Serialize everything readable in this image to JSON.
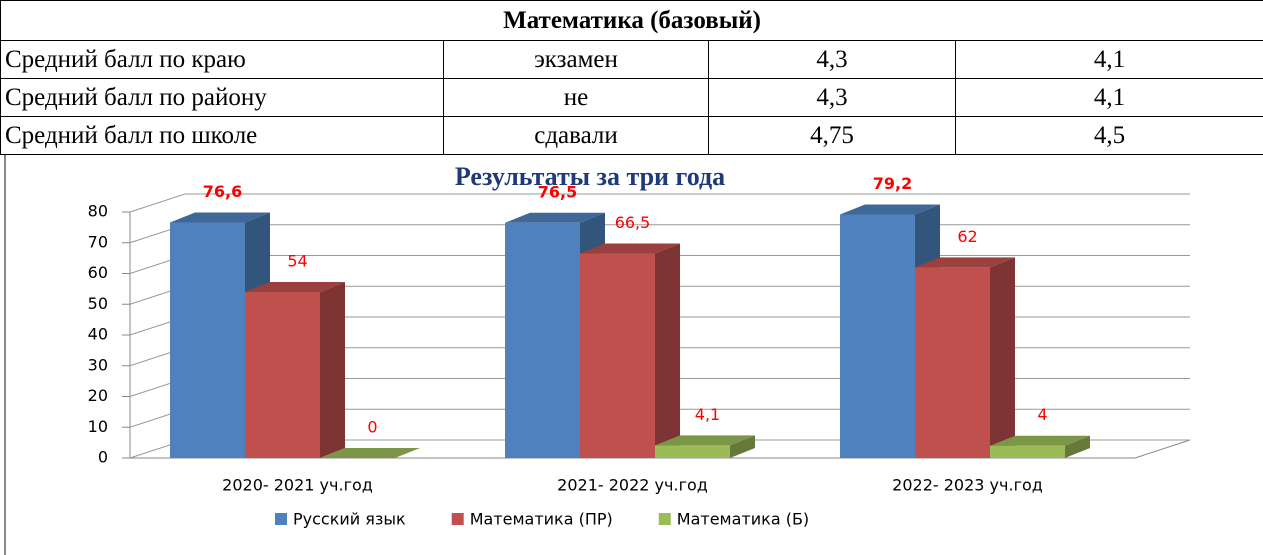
{
  "table": {
    "title": "Математика (базовый)",
    "rows": [
      [
        "Средний балл по краю",
        "экзамен",
        "4,3",
        "4,1"
      ],
      [
        "Средний балл по району",
        "не",
        "4,3",
        "4,1"
      ],
      [
        "Средний балл по школе",
        "сдавали",
        "4,75",
        "4,5"
      ]
    ]
  },
  "chart_data": {
    "type": "bar",
    "title": "Результаты за три года",
    "categories": [
      "2020- 2021 уч.год",
      "2021- 2022 уч.год",
      "2022- 2023 уч.год"
    ],
    "series": [
      {
        "name": "Русский язык",
        "color": "#4f81bd",
        "values": [
          76.6,
          76.5,
          79.2
        ],
        "value_labels": [
          "76,6",
          "76,5",
          "79,2"
        ]
      },
      {
        "name": "Математика (ПР)",
        "color": "#c0504d",
        "values": [
          54,
          66.5,
          62
        ],
        "value_labels": [
          "54",
          "66,5",
          "62"
        ]
      },
      {
        "name": "Математика (Б)",
        "color": "#9bbb59",
        "values": [
          0,
          4.1,
          4
        ],
        "value_labels": [
          "0",
          "4,1",
          "4"
        ]
      }
    ],
    "ylim": [
      0,
      80
    ],
    "yticks": [
      0,
      10,
      20,
      30,
      40,
      50,
      60,
      70,
      80
    ],
    "grid": true
  }
}
